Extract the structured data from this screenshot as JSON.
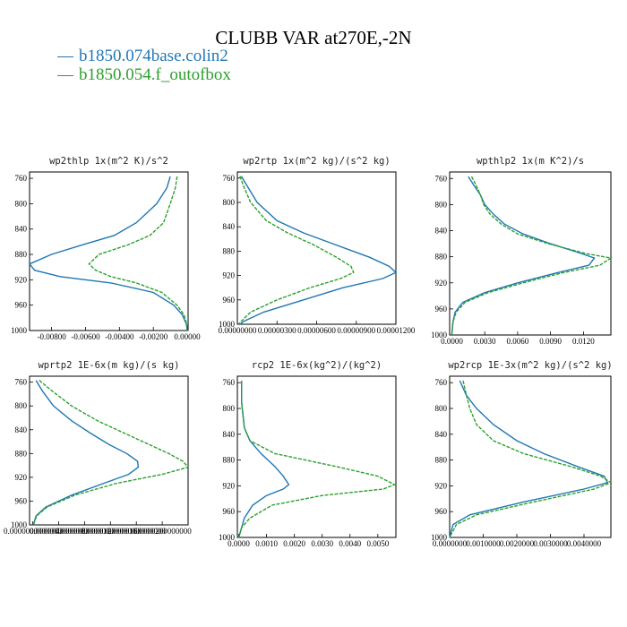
{
  "title": "CLUBB VAR at270E,-2N",
  "legend": [
    {
      "label": "b1850.074base.colin2",
      "color": "#1f77b4"
    },
    {
      "label": "b1850.054.f_outofbox",
      "color": "#2ca02c"
    }
  ],
  "chart_data": [
    {
      "type": "line",
      "title": "wp2thlp   1x(m^2 K)/s^2",
      "xlim": [
        -0.0093,
        5e-05
      ],
      "ylim": [
        1000,
        750
      ],
      "yticks": [
        760,
        800,
        840,
        880,
        920,
        960,
        1000
      ],
      "xtick_labels": [
        "-0.00800",
        "-0.00600",
        "-0.00400",
        "-0.00200",
        "0.00000"
      ],
      "xtick_values": [
        -0.008,
        -0.006,
        -0.004,
        -0.002,
        0.0
      ],
      "y": [
        757,
        775,
        800,
        830,
        850,
        865,
        880,
        895,
        905,
        915,
        925,
        940,
        960,
        975,
        990,
        1000
      ],
      "series": [
        {
          "name": "b1850.074base.colin2",
          "color": "#1f77b4",
          "x": [
            -0.001,
            -0.0012,
            -0.0018,
            -0.003,
            -0.0043,
            -0.0062,
            -0.008,
            -0.0093,
            -0.009,
            -0.0075,
            -0.0045,
            -0.002,
            -0.0008,
            -0.0003,
            -5e-05,
            0.0
          ]
        },
        {
          "name": "b1850.054.f_outofbox",
          "color": "#2ca02c",
          "x": [
            -0.0006,
            -0.0007,
            -0.001,
            -0.0014,
            -0.0022,
            -0.0035,
            -0.0052,
            -0.0058,
            -0.0054,
            -0.0045,
            -0.003,
            -0.0015,
            -0.0006,
            -0.0002,
            -3e-05,
            0.0
          ]
        }
      ]
    },
    {
      "type": "line",
      "title": "wp2rtp   1x(m^2 kg)/(s^2 kg)",
      "xlim": [
        0,
        1.2e-05
      ],
      "ylim": [
        1000,
        750
      ],
      "yticks": [
        760,
        800,
        840,
        880,
        920,
        960,
        1000
      ],
      "xtick_labels": [
        "0.00000000",
        "0.00000300",
        "0.00000600",
        "0.00000900",
        "0.00001200"
      ],
      "xtick_values": [
        0,
        3e-06,
        6e-06,
        9e-06,
        1.2e-05
      ],
      "y": [
        757,
        775,
        800,
        830,
        850,
        870,
        890,
        905,
        915,
        925,
        940,
        960,
        980,
        995,
        1000
      ],
      "series": [
        {
          "name": "b1850.074base.colin2",
          "color": "#1f77b4",
          "x": [
            3e-07,
            8e-07,
            1.5e-06,
            3e-06,
            5e-06,
            7.5e-06,
            1e-05,
            1.15e-05,
            1.2e-05,
            1.1e-05,
            8e-06,
            5e-06,
            2e-06,
            5e-07,
            2e-07
          ]
        },
        {
          "name": "b1850.054.f_outofbox",
          "color": "#2ca02c",
          "x": [
            2e-07,
            5e-07,
            1e-06,
            2.2e-06,
            3.8e-06,
            5.8e-06,
            7.5e-06,
            8.6e-06,
            8.8e-06,
            7.8e-06,
            5.5e-06,
            3e-06,
            1e-06,
            3e-07,
            1e-07
          ]
        }
      ]
    },
    {
      "type": "line",
      "title": "wpthlp2   1x(m K^2)/s",
      "xlim": [
        -0.0002,
        0.0145
      ],
      "ylim": [
        1000,
        750
      ],
      "yticks": [
        760,
        800,
        840,
        880,
        920,
        960,
        1000
      ],
      "xtick_labels": [
        "0.0000",
        "0.0030",
        "0.0060",
        "0.0090",
        "0.0120"
      ],
      "xtick_values": [
        0,
        0.003,
        0.006,
        0.009,
        0.012
      ],
      "y": [
        757,
        770,
        785,
        800,
        815,
        830,
        845,
        860,
        875,
        882,
        893,
        905,
        920,
        935,
        950,
        965,
        980,
        1000
      ],
      "series": [
        {
          "name": "b1850.074base.colin2",
          "color": "#1f77b4",
          "x": [
            0.0015,
            0.002,
            0.0026,
            0.003,
            0.0038,
            0.0048,
            0.0065,
            0.009,
            0.0118,
            0.013,
            0.0125,
            0.0095,
            0.006,
            0.003,
            0.001,
            0.0003,
            0.0001,
            0.0
          ]
        },
        {
          "name": "b1850.054.f_outofbox",
          "color": "#2ca02c",
          "x": [
            0.0018,
            0.0022,
            0.0026,
            0.0029,
            0.0035,
            0.0045,
            0.006,
            0.0088,
            0.0122,
            0.0145,
            0.0135,
            0.01,
            0.0065,
            0.0033,
            0.0012,
            0.0004,
            0.0001,
            0.0
          ]
        }
      ]
    },
    {
      "type": "line",
      "title": "wprtp2   1E-6x(m kg)/(s kg)",
      "xlim": [
        -5e-07,
        2.4e-05
      ],
      "ylim": [
        1000,
        750
      ],
      "yticks": [
        760,
        800,
        840,
        880,
        920,
        960,
        1000
      ],
      "xtick_labels": [
        "0.0000000000000",
        "0.0000040000000",
        "0.0000080000000",
        "0.0000120000000",
        "0.0000160000000",
        "0.0000200000000"
      ],
      "xtick_values": [
        0,
        4e-06,
        8e-06,
        1.2e-05,
        1.6e-05,
        2e-05
      ],
      "y": [
        757,
        775,
        800,
        825,
        845,
        865,
        880,
        893,
        903,
        915,
        930,
        950,
        970,
        985,
        1000
      ],
      "series": [
        {
          "name": "b1850.074base.colin2",
          "color": "#1f77b4",
          "x": [
            5e-07,
            1.5e-06,
            3.2e-06,
            6e-06,
            8.8e-06,
            1.18e-05,
            1.45e-05,
            1.62e-05,
            1.63e-05,
            1.48e-05,
            1.1e-05,
            6e-06,
            2e-06,
            5e-07,
            1e-07
          ]
        },
        {
          "name": "b1850.054.f_outofbox",
          "color": "#2ca02c",
          "x": [
            1e-06,
            3e-06,
            6e-06,
            1e-05,
            1.4e-05,
            1.8e-05,
            2.1e-05,
            2.32e-05,
            2.4e-05,
            2e-05,
            1.3e-05,
            6.5e-06,
            2.2e-06,
            6e-07,
            1e-07
          ]
        }
      ]
    },
    {
      "type": "line",
      "title": "rcp2   1E-6x(kg^2)/(kg^2)",
      "xlim": [
        -5e-05,
        0.00565
      ],
      "ylim": [
        1000,
        750
      ],
      "yticks": [
        760,
        800,
        840,
        880,
        920,
        960,
        1000
      ],
      "xtick_labels": [
        "0.0000",
        "0.0010",
        "0.0020",
        "0.0030",
        "0.0040",
        "0.0050"
      ],
      "xtick_values": [
        0,
        0.001,
        0.002,
        0.003,
        0.004,
        0.005
      ],
      "y": [
        757,
        790,
        830,
        850,
        870,
        890,
        905,
        918,
        925,
        935,
        950,
        970,
        985,
        1000
      ],
      "series": [
        {
          "name": "b1850.074base.colin2",
          "color": "#1f77b4",
          "x": [
            0.0001,
            0.0001,
            0.0002,
            0.0004,
            0.0008,
            0.0013,
            0.0016,
            0.0018,
            0.0016,
            0.001,
            0.0005,
            0.0002,
            0.0001,
            0.0
          ]
        },
        {
          "name": "b1850.054.f_outofbox",
          "color": "#2ca02c",
          "x": [
            0.0001,
            0.0001,
            0.0002,
            0.0004,
            0.0013,
            0.0035,
            0.005,
            0.0056,
            0.0052,
            0.003,
            0.0012,
            0.0004,
            0.0001,
            0.0
          ]
        }
      ]
    },
    {
      "type": "line",
      "title": "wp2rcp   1E-3x(m^2 kg)/(s^2 kg)",
      "xlim": [
        0,
        0.0048
      ],
      "ylim": [
        1000,
        750
      ],
      "yticks": [
        760,
        800,
        840,
        880,
        920,
        960,
        1000
      ],
      "xtick_labels": [
        "0.0000000",
        "0.0010000",
        "0.0020000",
        "0.0030000",
        "0.0040000"
      ],
      "xtick_values": [
        0,
        0.001,
        0.002,
        0.003,
        0.004
      ],
      "y": [
        757,
        780,
        800,
        825,
        850,
        870,
        890,
        905,
        915,
        925,
        945,
        965,
        980,
        1000
      ],
      "series": [
        {
          "name": "b1850.074base.colin2",
          "color": "#1f77b4",
          "x": [
            0.0003,
            0.0005,
            0.0008,
            0.0013,
            0.002,
            0.0028,
            0.0038,
            0.0046,
            0.0047,
            0.004,
            0.0022,
            0.0006,
            0.0001,
            0.0
          ]
        },
        {
          "name": "b1850.054.f_outofbox",
          "color": "#2ca02c",
          "x": [
            0.0004,
            0.0005,
            0.0006,
            0.0008,
            0.0013,
            0.0022,
            0.0036,
            0.0045,
            0.0048,
            0.0043,
            0.0025,
            0.0008,
            0.0002,
            0.0
          ]
        }
      ]
    }
  ]
}
